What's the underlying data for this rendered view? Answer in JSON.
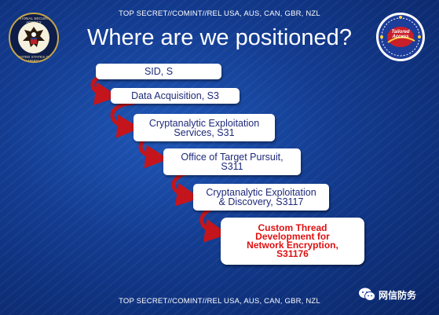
{
  "header": {
    "classification": "TOP SECRET//COMINT//REL USA, AUS, CAN, GBR, NZL",
    "title": "Where are we positioned?"
  },
  "logos": {
    "left_seal": {
      "top_text": "NATIONAL SECURITY AGENCY",
      "bottom_text": "UNITED STATES OF AMERICA"
    },
    "right_logo": {
      "text": "Tailored Access"
    }
  },
  "hierarchy": [
    {
      "label": "SID, S",
      "highlight": false
    },
    {
      "label": "Data Acquisition, S3",
      "highlight": false
    },
    {
      "label": "Cryptanalytic Exploitation\nServices, S31",
      "highlight": false
    },
    {
      "label": "Office of Target Pursuit,\nS311",
      "highlight": false
    },
    {
      "label": "Cryptanalytic Exploitation\n& Discovery, S3117",
      "highlight": false
    },
    {
      "label": "Custom Thread\nDevelopment for\nNetwork Encryption,\nS31176",
      "highlight": true
    }
  ],
  "footer": {
    "classification": "TOP SECRET//COMINT//REL USA, AUS, CAN, GBR, NZL"
  },
  "watermark": {
    "text": "网信防务"
  },
  "colors": {
    "background": "#133b8f",
    "box_text": "#1f2a7a",
    "highlight_text": "#e01010",
    "arrow": "#c4151c"
  }
}
